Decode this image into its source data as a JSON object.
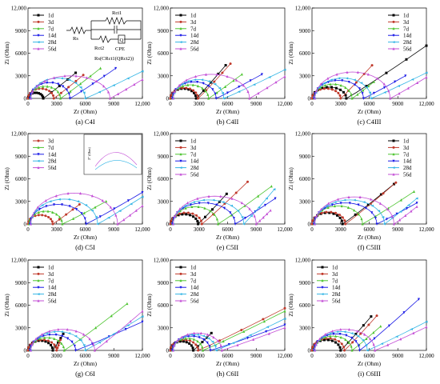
{
  "figure": {
    "legend_labels": [
      "1d",
      "3d",
      "7d",
      "14d",
      "28d",
      "56d"
    ],
    "series_colors": [
      "#000000",
      "#c0392b",
      "#4cc42f",
      "#1a1ae6",
      "#33b5e5",
      "#c34fd6"
    ],
    "circuit": {
      "labels": [
        "Rs",
        "Rct1",
        "Rct2",
        "CPE",
        "Q"
      ],
      "formula": "Rs(CRct1(QRct2))"
    },
    "inset": {
      "label": "Z\" (Ohm)"
    }
  },
  "chart_data": [
    {
      "id": "C4I",
      "type": "line",
      "caption": "(a) C4I",
      "xlabel": "Zr (Ohm)",
      "ylabel": "Zi (Ohm)",
      "xlim": [
        0,
        12000
      ],
      "ylim": [
        0,
        12000
      ],
      "xticks": [
        "0",
        "3000",
        "6000",
        "9000",
        "12,000"
      ],
      "yticks": [
        "0",
        "3000",
        "6000",
        "9000",
        "12,000"
      ],
      "legend": "top-left",
      "series": [
        {
          "name": "1d",
          "arc_start": 0,
          "arc_end": 1600,
          "arc_peak": 750,
          "tail_end": [
            5000,
            3400
          ]
        },
        {
          "name": "3d",
          "arc_start": 0,
          "arc_end": 2700,
          "arc_peak": 1300,
          "tail_end": [
            5800,
            3100
          ]
        },
        {
          "name": "7d",
          "arc_start": 200,
          "arc_end": 3400,
          "arc_peak": 1600,
          "tail_end": [
            7600,
            4000
          ]
        },
        {
          "name": "14d",
          "arc_start": 200,
          "arc_end": 4400,
          "arc_peak": 2100,
          "tail_end": [
            9200,
            4000
          ]
        },
        {
          "name": "28d",
          "arc_start": 300,
          "arc_end": 6000,
          "arc_peak": 2700,
          "tail_end": [
            12000,
            3600
          ]
        },
        {
          "name": "56d",
          "arc_start": 300,
          "arc_end": 8600,
          "arc_peak": 3000,
          "tail_end": [
            12000,
            2500
          ]
        }
      ]
    },
    {
      "id": "C4II",
      "type": "line",
      "caption": "(b) C4II",
      "xlabel": "Zr (Ohm)",
      "ylabel": "Zi (Ohm)",
      "xlim": [
        0,
        12000
      ],
      "ylim": [
        0,
        12000
      ],
      "xticks": [
        "0",
        "3000",
        "6000",
        "9000",
        "12,000"
      ],
      "yticks": [
        "0",
        "3000",
        "6000",
        "9000",
        "12,000"
      ],
      "legend": "top-left",
      "series": [
        {
          "name": "1d",
          "arc_start": 0,
          "arc_end": 2700,
          "arc_peak": 1300,
          "tail_end": [
            5800,
            4400
          ]
        },
        {
          "name": "3d",
          "arc_start": 0,
          "arc_end": 2900,
          "arc_peak": 1400,
          "tail_end": [
            6300,
            4600
          ]
        },
        {
          "name": "7d",
          "arc_start": 200,
          "arc_end": 4000,
          "arc_peak": 1800,
          "tail_end": [
            7500,
            3200
          ]
        },
        {
          "name": "14d",
          "arc_start": 200,
          "arc_end": 4800,
          "arc_peak": 2200,
          "tail_end": [
            9600,
            3200
          ]
        },
        {
          "name": "28d",
          "arc_start": 300,
          "arc_end": 5600,
          "arc_peak": 2500,
          "tail_end": [
            12000,
            3800
          ]
        },
        {
          "name": "56d",
          "arc_start": 300,
          "arc_end": 8300,
          "arc_peak": 3200,
          "tail_end": [
            12000,
            2900
          ]
        }
      ]
    },
    {
      "id": "C4III",
      "type": "line",
      "caption": "(c) C4III",
      "xlabel": "Zr (Ohm)",
      "ylabel": "Zi (Ohm)",
      "xlim": [
        0,
        12000
      ],
      "ylim": [
        0,
        12000
      ],
      "xticks": [
        "0",
        "3000",
        "6000",
        "9000",
        "12,000"
      ],
      "yticks": [
        "0",
        "3000",
        "6000",
        "9000",
        "12,000"
      ],
      "legend": "top-right",
      "series": [
        {
          "name": "1d",
          "arc_start": 0,
          "arc_end": 3600,
          "arc_peak": 1500,
          "tail_end": [
            12000,
            7000
          ]
        },
        {
          "name": "3d",
          "arc_start": 0,
          "arc_end": 3000,
          "arc_peak": 1300,
          "tail_end": [
            6300,
            4400
          ]
        },
        {
          "name": "7d",
          "arc_start": 200,
          "arc_end": 4200,
          "arc_peak": 1900,
          "tail_end": [
            6500,
            2200
          ]
        },
        {
          "name": "14d",
          "arc_start": 200,
          "arc_end": 5400,
          "arc_peak": 2400,
          "tail_end": [
            9800,
            3000
          ]
        },
        {
          "name": "28d",
          "arc_start": 300,
          "arc_end": 6200,
          "arc_peak": 2700,
          "tail_end": [
            12000,
            3400
          ]
        },
        {
          "name": "56d",
          "arc_start": 300,
          "arc_end": 8200,
          "arc_peak": 3500,
          "tail_end": [
            12000,
            2800
          ]
        }
      ]
    },
    {
      "id": "C5I",
      "type": "line",
      "caption": "(d) C5I",
      "xlabel": "Zr (Ohm)",
      "ylabel": "Zi (Ohm)",
      "xlim": [
        0,
        12000
      ],
      "ylim": [
        0,
        12000
      ],
      "xticks": [
        "0",
        "3000",
        "6000",
        "9000",
        "12,000"
      ],
      "yticks": [
        "0",
        "3000",
        "6000",
        "9000",
        "12,000"
      ],
      "legend": "top-left",
      "series": [
        {
          "name": "3d",
          "arc_start": 0,
          "arc_end": 2600,
          "arc_peak": 1200,
          "tail_end": [
            5400,
            2600
          ]
        },
        {
          "name": "7d",
          "arc_start": 100,
          "arc_end": 3600,
          "arc_peak": 1700,
          "tail_end": [
            8200,
            3000
          ]
        },
        {
          "name": "14d",
          "arc_start": 200,
          "arc_end": 6100,
          "arc_peak": 2600,
          "tail_end": [
            12000,
            4200
          ]
        },
        {
          "name": "28d",
          "arc_start": 300,
          "arc_end": 7300,
          "arc_peak": 3300,
          "tail_end": [
            12000,
            3600
          ]
        },
        {
          "name": "56d",
          "arc_start": 300,
          "arc_end": 9400,
          "arc_peak": 4100,
          "tail_end": [
            12000,
            2400
          ]
        }
      ]
    },
    {
      "id": "C5II",
      "type": "line",
      "caption": "(e) C5II",
      "xlabel": "Zr (Ohm)",
      "ylabel": "Zi (Ohm)",
      "xlim": [
        0,
        12000
      ],
      "ylim": [
        0,
        12000
      ],
      "xticks": [
        "0",
        "3000",
        "6000",
        "9000",
        "12,000"
      ],
      "yticks": [
        "0",
        "3000",
        "6000",
        "9000",
        "12,000"
      ],
      "legend": "top-left",
      "series": [
        {
          "name": "1d",
          "arc_start": 0,
          "arc_end": 2900,
          "arc_peak": 1300,
          "tail_end": [
            5900,
            4000
          ]
        },
        {
          "name": "3d",
          "arc_start": 0,
          "arc_end": 3300,
          "arc_peak": 1500,
          "tail_end": [
            8100,
            5600
          ]
        },
        {
          "name": "7d",
          "arc_start": 200,
          "arc_end": 5000,
          "arc_peak": 2300,
          "tail_end": [
            10600,
            5000
          ]
        },
        {
          "name": "14d",
          "arc_start": 200,
          "arc_end": 6800,
          "arc_peak": 2800,
          "tail_end": [
            11000,
            3400
          ]
        },
        {
          "name": "28d",
          "arc_start": 300,
          "arc_end": 7700,
          "arc_peak": 3200,
          "tail_end": [
            10900,
            4600
          ]
        },
        {
          "name": "56d",
          "arc_start": 300,
          "arc_end": 9000,
          "arc_peak": 3700,
          "tail_end": [
            10500,
            1800
          ]
        }
      ]
    },
    {
      "id": "C5III",
      "type": "line",
      "caption": "(f) C5III",
      "xlabel": "Zr (Ohm)",
      "ylabel": "Zi (Ohm)",
      "xlim": [
        0,
        12000
      ],
      "ylim": [
        0,
        12000
      ],
      "xticks": [
        "0",
        "3000",
        "6000",
        "9000",
        "12,000"
      ],
      "yticks": [
        "0",
        "3000",
        "6000",
        "9000",
        "12,000"
      ],
      "legend": "top-right",
      "series": [
        {
          "name": "1d",
          "arc_start": 0,
          "arc_end": 3200,
          "arc_peak": 1500,
          "tail_end": [
            8600,
            5300
          ]
        },
        {
          "name": "3d",
          "arc_start": 0,
          "arc_end": 3500,
          "arc_peak": 1600,
          "tail_end": [
            8800,
            5500
          ]
        },
        {
          "name": "7d",
          "arc_start": 200,
          "arc_end": 5300,
          "arc_peak": 2400,
          "tail_end": [
            10700,
            4300
          ]
        },
        {
          "name": "14d",
          "arc_start": 200,
          "arc_end": 6800,
          "arc_peak": 2800,
          "tail_end": [
            11000,
            2800
          ]
        },
        {
          "name": "28d",
          "arc_start": 300,
          "arc_end": 7600,
          "arc_peak": 3200,
          "tail_end": [
            11000,
            3400
          ]
        },
        {
          "name": "56d",
          "arc_start": 300,
          "arc_end": 8600,
          "arc_peak": 3600,
          "tail_end": [
            11000,
            2300
          ]
        }
      ]
    },
    {
      "id": "C6I",
      "type": "line",
      "caption": "(g) C6I",
      "xlabel": "Zr (Ohm)",
      "ylabel": "Zi (Ohm)",
      "xlim": [
        0,
        12000
      ],
      "ylim": [
        0,
        12000
      ],
      "xticks": [
        "0",
        "3000",
        "6000",
        "9000",
        "12,000"
      ],
      "yticks": [
        "0",
        "3000",
        "6000",
        "9000",
        "12,000"
      ],
      "legend": "top-left",
      "series": [
        {
          "name": "1d",
          "arc_start": 0,
          "arc_end": 2600,
          "arc_peak": 1300,
          "tail_end": [
            3700,
            2200
          ]
        },
        {
          "name": "3d",
          "arc_start": 0,
          "arc_end": 3000,
          "arc_peak": 1400,
          "tail_end": [
            3400,
            1400
          ]
        },
        {
          "name": "7d",
          "arc_start": 200,
          "arc_end": 3800,
          "arc_peak": 1700,
          "tail_end": [
            10400,
            6200
          ]
        },
        {
          "name": "14d",
          "arc_start": 200,
          "arc_end": 5000,
          "arc_peak": 2100,
          "tail_end": [
            12000,
            3800
          ]
        },
        {
          "name": "28d",
          "arc_start": 300,
          "arc_end": 6000,
          "arc_peak": 2500,
          "tail_end": [
            12000,
            4500
          ]
        },
        {
          "name": "56d",
          "arc_start": 300,
          "arc_end": 7000,
          "arc_peak": 2800,
          "tail_end": [
            12000,
            5200
          ]
        }
      ]
    },
    {
      "id": "C6II",
      "type": "line",
      "caption": "(h) C6II",
      "xlabel": "Zr (Ohm)",
      "ylabel": "Zi (Ohm)",
      "xlim": [
        0,
        12000
      ],
      "ylim": [
        0,
        12000
      ],
      "xticks": [
        "0",
        "3000",
        "6000",
        "9000",
        "12,000"
      ],
      "yticks": [
        "0",
        "3000",
        "6000",
        "9000",
        "12,000"
      ],
      "legend": "top-left",
      "series": [
        {
          "name": "1d",
          "arc_start": 0,
          "arc_end": 2400,
          "arc_peak": 1200,
          "tail_end": [
            4300,
            2300
          ]
        },
        {
          "name": "3d",
          "arc_start": 0,
          "arc_end": 2900,
          "arc_peak": 1400,
          "tail_end": [
            12000,
            5600
          ]
        },
        {
          "name": "7d",
          "arc_start": 200,
          "arc_end": 3400,
          "arc_peak": 1600,
          "tail_end": [
            12000,
            5200
          ]
        },
        {
          "name": "14d",
          "arc_start": 200,
          "arc_end": 4200,
          "arc_peak": 1900,
          "tail_end": [
            12000,
            3400
          ]
        },
        {
          "name": "28d",
          "arc_start": 300,
          "arc_end": 4800,
          "arc_peak": 2100,
          "tail_end": [
            12000,
            4200
          ]
        },
        {
          "name": "56d",
          "arc_start": 300,
          "arc_end": 5400,
          "arc_peak": 2300,
          "tail_end": [
            12000,
            3000
          ]
        }
      ]
    },
    {
      "id": "C6III",
      "type": "line",
      "caption": "(i) C6III",
      "xlabel": "Zr (Ohm)",
      "ylabel": "Zi (Ohm)",
      "xlim": [
        0,
        12000
      ],
      "ylim": [
        0,
        12000
      ],
      "xticks": [
        "0",
        "3000",
        "6000",
        "9000",
        "12,000"
      ],
      "yticks": [
        "0",
        "3000",
        "6000",
        "9000",
        "12,000"
      ],
      "legend": "top-left",
      "series": [
        {
          "name": "1d",
          "arc_start": 0,
          "arc_end": 3000,
          "arc_peak": 1400,
          "tail_end": [
            6200,
            4500
          ]
        },
        {
          "name": "3d",
          "arc_start": 0,
          "arc_end": 3400,
          "arc_peak": 1600,
          "tail_end": [
            6800,
            4600
          ]
        },
        {
          "name": "7d",
          "arc_start": 200,
          "arc_end": 4200,
          "arc_peak": 1900,
          "tail_end": [
            7200,
            3200
          ]
        },
        {
          "name": "14d",
          "arc_start": 200,
          "arc_end": 5000,
          "arc_peak": 2200,
          "tail_end": [
            11200,
            6800
          ]
        },
        {
          "name": "28d",
          "arc_start": 300,
          "arc_end": 5800,
          "arc_peak": 2500,
          "tail_end": [
            12000,
            3800
          ]
        },
        {
          "name": "56d",
          "arc_start": 300,
          "arc_end": 6600,
          "arc_peak": 2800,
          "tail_end": [
            12000,
            3100
          ]
        }
      ]
    }
  ]
}
